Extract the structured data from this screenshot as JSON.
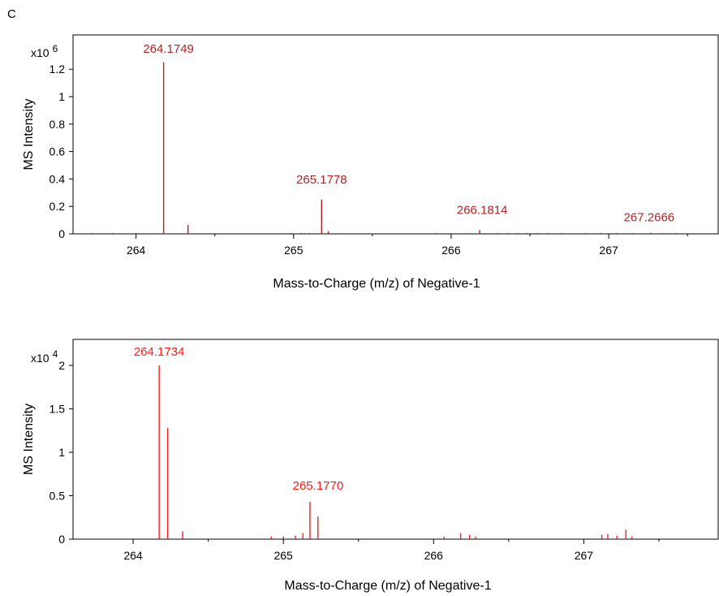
{
  "panel_label": "C",
  "chart_data": [
    {
      "type": "bar",
      "subtype": "mass-spectrum-sticks",
      "color": "#b22222",
      "xlabel": "Mass-to-Charge (m/z) of Negative-1",
      "ylabel": "MS Intensity",
      "multiplier_base": "x10",
      "multiplier_exp": "6",
      "xlim": [
        263.6,
        267.7
      ],
      "ylim": [
        0,
        1.45
      ],
      "xticks": [
        264,
        265,
        266,
        267
      ],
      "yticks": [
        0,
        0.2,
        0.4,
        0.6,
        0.8,
        1,
        1.2
      ],
      "ytick_labels": [
        "0",
        "0.2",
        "0.4",
        "0.6",
        "0.8",
        "1",
        "1.2"
      ],
      "peaks": [
        {
          "mz": 263.72,
          "intensity": 0.003
        },
        {
          "mz": 263.85,
          "intensity": 0.003
        },
        {
          "mz": 264.0,
          "intensity": 0.003
        },
        {
          "mz": 264.1749,
          "intensity": 1.25
        },
        {
          "mz": 264.33,
          "intensity": 0.065
        },
        {
          "mz": 264.98,
          "intensity": 0.004
        },
        {
          "mz": 265.05,
          "intensity": 0.004
        },
        {
          "mz": 265.1,
          "intensity": 0.004
        },
        {
          "mz": 265.1778,
          "intensity": 0.25
        },
        {
          "mz": 265.22,
          "intensity": 0.02
        },
        {
          "mz": 265.9,
          "intensity": 0.004
        },
        {
          "mz": 266.1,
          "intensity": 0.005
        },
        {
          "mz": 266.1814,
          "intensity": 0.028
        },
        {
          "mz": 266.3,
          "intensity": 0.006
        },
        {
          "mz": 266.36,
          "intensity": 0.006
        },
        {
          "mz": 266.42,
          "intensity": 0.006
        },
        {
          "mz": 266.48,
          "intensity": 0.007
        },
        {
          "mz": 266.55,
          "intensity": 0.006
        },
        {
          "mz": 266.62,
          "intensity": 0.006
        },
        {
          "mz": 266.7,
          "intensity": 0.006
        },
        {
          "mz": 266.85,
          "intensity": 0.005
        },
        {
          "mz": 266.95,
          "intensity": 0.006
        },
        {
          "mz": 267.05,
          "intensity": 0.005
        },
        {
          "mz": 267.15,
          "intensity": 0.006
        },
        {
          "mz": 267.2666,
          "intensity": 0.008
        },
        {
          "mz": 267.35,
          "intensity": 0.005
        },
        {
          "mz": 267.42,
          "intensity": 0.004
        }
      ],
      "annotations": [
        {
          "text": "264.1749",
          "mz": 264.1749,
          "intensity": 1.25
        },
        {
          "text": "265.1778",
          "mz": 265.1778,
          "intensity": 0.25
        },
        {
          "text": "266.1814",
          "mz": 266.1814,
          "intensity": 0.028
        },
        {
          "text": "267.2666",
          "mz": 267.2666,
          "intensity": 0.008
        }
      ]
    },
    {
      "type": "bar",
      "subtype": "mass-spectrum-sticks",
      "color": "#ff1a1a",
      "xlabel": "Mass-to-Charge (m/z) of Negative-1",
      "ylabel": "MS Intensity",
      "multiplier_base": "x10",
      "multiplier_exp": "4",
      "xlim": [
        263.6,
        267.9
      ],
      "ylim": [
        0,
        2.3
      ],
      "xticks": [
        264,
        265,
        266,
        267
      ],
      "yticks": [
        0,
        0.5,
        1,
        1.5,
        2
      ],
      "ytick_labels": [
        "0",
        "0.5",
        "1",
        "1.5",
        "2"
      ],
      "peaks": [
        {
          "mz": 264.1734,
          "intensity": 2.0
        },
        {
          "mz": 264.23,
          "intensity": 1.28
        },
        {
          "mz": 264.33,
          "intensity": 0.09
        },
        {
          "mz": 264.92,
          "intensity": 0.03
        },
        {
          "mz": 265.0,
          "intensity": 0.03
        },
        {
          "mz": 265.08,
          "intensity": 0.04
        },
        {
          "mz": 265.13,
          "intensity": 0.07
        },
        {
          "mz": 265.177,
          "intensity": 0.43
        },
        {
          "mz": 265.23,
          "intensity": 0.26
        },
        {
          "mz": 266.07,
          "intensity": 0.03
        },
        {
          "mz": 266.18,
          "intensity": 0.07
        },
        {
          "mz": 266.24,
          "intensity": 0.05
        },
        {
          "mz": 266.28,
          "intensity": 0.03
        },
        {
          "mz": 267.12,
          "intensity": 0.05
        },
        {
          "mz": 267.16,
          "intensity": 0.06
        },
        {
          "mz": 267.22,
          "intensity": 0.04
        },
        {
          "mz": 267.28,
          "intensity": 0.11
        },
        {
          "mz": 267.32,
          "intensity": 0.03
        }
      ],
      "annotations": [
        {
          "text": "264.1734",
          "mz": 264.1734,
          "intensity": 2.0
        },
        {
          "text": "265.1770",
          "mz": 265.177,
          "intensity": 0.43
        }
      ]
    }
  ]
}
